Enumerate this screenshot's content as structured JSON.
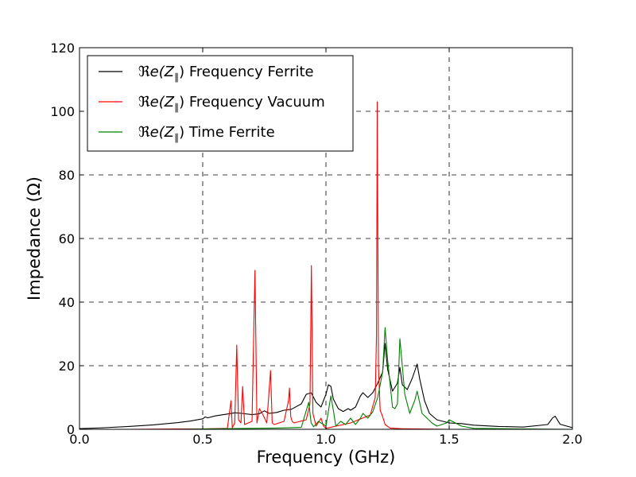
{
  "chart_data": {
    "type": "line",
    "title": "",
    "xlabel": "Frequency (GHz)",
    "ylabel": "Impedance (Ω)",
    "xlim": [
      0.0,
      2.0
    ],
    "ylim": [
      0,
      120
    ],
    "x_ticks": [
      0.0,
      0.5,
      1.0,
      1.5,
      2.0
    ],
    "x_tick_labels": [
      "0.0",
      "0.5",
      "1.0",
      "1.5",
      "2.0"
    ],
    "y_ticks": [
      0,
      20,
      40,
      60,
      80,
      100,
      120
    ],
    "y_tick_labels": [
      "0",
      "20",
      "40",
      "60",
      "80",
      "100",
      "120"
    ],
    "grid": true,
    "grid_style": "dashed",
    "legend_position": "top-left",
    "legend_prefix": "ℜe(Z",
    "legend_subscript": "∥",
    "legend_suffix": ")",
    "series": [
      {
        "name": "Frequency Ferrite",
        "color": "#000000",
        "x": [
          0.0,
          0.1,
          0.2,
          0.3,
          0.4,
          0.45,
          0.5,
          0.51,
          0.52,
          0.55,
          0.6,
          0.63,
          0.66,
          0.7,
          0.73,
          0.75,
          0.77,
          0.8,
          0.83,
          0.86,
          0.9,
          0.92,
          0.94,
          0.96,
          0.98,
          1.0,
          1.01,
          1.02,
          1.03,
          1.05,
          1.07,
          1.09,
          1.1,
          1.12,
          1.14,
          1.15,
          1.17,
          1.19,
          1.21,
          1.23,
          1.24,
          1.25,
          1.27,
          1.29,
          1.3,
          1.31,
          1.33,
          1.35,
          1.37,
          1.38,
          1.4,
          1.42,
          1.45,
          1.5,
          1.55,
          1.6,
          1.7,
          1.8,
          1.9,
          1.92,
          1.93,
          1.95,
          2.0
        ],
        "y": [
          0.2,
          0.5,
          0.9,
          1.4,
          2.1,
          2.6,
          3.3,
          3.9,
          3.6,
          4.2,
          4.8,
          5.2,
          5.0,
          4.6,
          4.9,
          5.8,
          5.0,
          5.3,
          6.0,
          6.3,
          8.0,
          11.0,
          11.5,
          8.5,
          7.0,
          11.0,
          14.0,
          13.5,
          9.5,
          6.5,
          5.6,
          6.5,
          6.0,
          7.0,
          10.5,
          11.5,
          10.0,
          11.5,
          14.5,
          18.0,
          27.0,
          19.0,
          12.0,
          14.5,
          19.5,
          14.0,
          12.5,
          16.0,
          20.5,
          16.0,
          9.0,
          5.0,
          3.0,
          2.0,
          1.8,
          1.3,
          0.9,
          0.7,
          1.5,
          3.6,
          4.1,
          1.6,
          0.5
        ]
      },
      {
        "name": "Frequency Vacuum",
        "color": "#ff0000",
        "x": [
          0.0,
          0.2,
          0.4,
          0.5,
          0.6,
          0.615,
          0.62,
          0.63,
          0.638,
          0.645,
          0.655,
          0.662,
          0.67,
          0.7,
          0.712,
          0.72,
          0.73,
          0.745,
          0.76,
          0.775,
          0.782,
          0.79,
          0.83,
          0.848,
          0.852,
          0.857,
          0.863,
          0.87,
          0.92,
          0.935,
          0.941,
          0.947,
          0.96,
          0.98,
          0.99,
          1.0,
          1.1,
          1.18,
          1.2,
          1.205,
          1.208,
          1.213,
          1.22,
          1.23,
          1.24,
          1.26,
          1.3,
          1.5,
          2.0
        ],
        "y": [
          0.0,
          0.0,
          0.1,
          0.1,
          0.3,
          9.0,
          0.5,
          2.0,
          26.5,
          3.0,
          2.0,
          13.5,
          1.5,
          2.5,
          50.0,
          2.0,
          6.5,
          4.5,
          2.0,
          18.5,
          2.0,
          1.5,
          2.5,
          9.0,
          13.0,
          4.0,
          2.5,
          2.0,
          3.0,
          8.0,
          51.5,
          5.0,
          1.0,
          3.5,
          1.0,
          0.3,
          2.0,
          4.5,
          10.0,
          30.0,
          103.0,
          20.0,
          6.0,
          4.0,
          1.5,
          0.4,
          0.2,
          0.0,
          0.0
        ]
      },
      {
        "name": "Time Ferrite",
        "color": "#008000",
        "x": [
          0.0,
          0.4,
          0.5,
          0.6,
          0.7,
          0.8,
          0.9,
          0.93,
          0.94,
          0.95,
          0.97,
          1.0,
          1.02,
          1.03,
          1.04,
          1.06,
          1.08,
          1.1,
          1.12,
          1.14,
          1.15,
          1.17,
          1.19,
          1.21,
          1.23,
          1.24,
          1.25,
          1.27,
          1.28,
          1.29,
          1.3,
          1.32,
          1.34,
          1.36,
          1.37,
          1.39,
          1.41,
          1.43,
          1.45,
          1.49,
          1.5,
          1.55,
          1.6,
          1.8,
          2.0
        ],
        "y": [
          0.0,
          0.0,
          0.1,
          0.2,
          0.3,
          0.4,
          0.6,
          8.5,
          2.0,
          0.8,
          2.5,
          1.0,
          10.5,
          6.0,
          1.0,
          2.5,
          1.5,
          3.5,
          1.5,
          3.5,
          5.0,
          3.5,
          5.5,
          10.0,
          18.0,
          32.0,
          22.0,
          7.0,
          6.5,
          8.0,
          28.5,
          11.0,
          5.0,
          9.0,
          12.0,
          5.0,
          3.5,
          2.0,
          1.0,
          2.0,
          3.0,
          1.0,
          0.3,
          0.1,
          0.0
        ]
      }
    ]
  }
}
